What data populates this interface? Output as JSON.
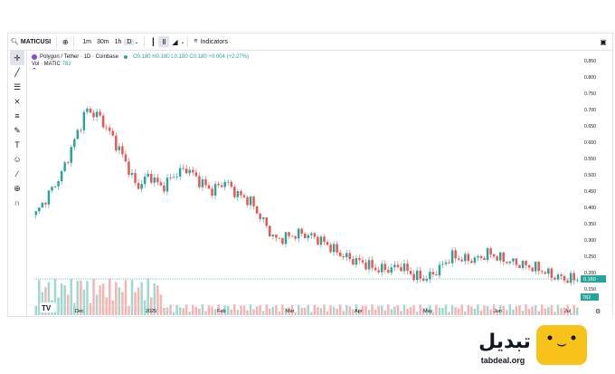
{
  "toolbar": {
    "symbol": "MATICUSI",
    "timeframes": [
      "1m",
      "30m",
      "1h",
      "D"
    ],
    "active_timeframe": "D",
    "indicators_label": "Indicators"
  },
  "legend": {
    "pair": "Polygon / Tether · 1D · Coinbase",
    "ohlc": "O0.180 H0.180 L0.180 C0.180 +0.004 (+2.27%)",
    "vol_label": "Vol · MATIC",
    "vol_value": "782"
  },
  "price_axis": {
    "ticks": [
      "0.850",
      "0.800",
      "0.750",
      "0.700",
      "0.650",
      "0.600",
      "0.550",
      "0.500",
      "0.450",
      "0.400",
      "0.350",
      "0.300",
      "0.250",
      "0.200",
      "0.150"
    ],
    "current_price": "0.180",
    "current_volume": "782"
  },
  "time_axis": {
    "labels": [
      "Dec",
      "2025",
      "Feb",
      "Mar",
      "Apr",
      "May",
      "Jun",
      "Jul"
    ]
  },
  "brand": {
    "name_fa": "تبدیل",
    "domain": "tabdeal.org",
    "accent": "#f7c31a"
  },
  "colors": {
    "up": "#26a69a",
    "down": "#ef5350",
    "line": "#b7e3d9"
  },
  "chart_data": {
    "type": "candlestick",
    "title": "Polygon / Tether · 1D · Coinbase",
    "ylim": [
      0.13,
      0.87
    ],
    "x_labels": [
      "Dec",
      "2025",
      "Feb",
      "Mar",
      "Apr",
      "May",
      "Jun",
      "Jul"
    ],
    "close_path": [
      [
        "Nov",
        0.38
      ],
      [
        "Nov",
        0.44
      ],
      [
        "Nov",
        0.5
      ],
      [
        "Nov",
        0.6
      ],
      [
        "Dec",
        0.7
      ],
      [
        "Dec",
        0.68
      ],
      [
        "Dec",
        0.62
      ],
      [
        "Dec",
        0.55
      ],
      [
        "Dec",
        0.46
      ],
      [
        "Dec",
        0.5
      ],
      [
        "Dec",
        0.46
      ],
      [
        "2025",
        0.5
      ],
      [
        "2025",
        0.52
      ],
      [
        "Jan",
        0.48
      ],
      [
        "Jan",
        0.45
      ],
      [
        "Jan",
        0.48
      ],
      [
        "Jan",
        0.44
      ],
      [
        "Jan",
        0.42
      ],
      [
        "Jan",
        0.36
      ],
      [
        "Feb",
        0.3
      ],
      [
        "Feb",
        0.31
      ],
      [
        "Feb",
        0.32
      ],
      [
        "Feb",
        0.31
      ],
      [
        "Feb",
        0.29
      ],
      [
        "Feb",
        0.26
      ],
      [
        "Mar",
        0.24
      ],
      [
        "Mar",
        0.23
      ],
      [
        "Mar",
        0.21
      ],
      [
        "Mar",
        0.21
      ],
      [
        "Apr",
        0.22
      ],
      [
        "Apr",
        0.19
      ],
      [
        "Apr",
        0.18
      ],
      [
        "Apr",
        0.21
      ],
      [
        "May",
        0.25
      ],
      [
        "May",
        0.24
      ],
      [
        "May",
        0.24
      ],
      [
        "May",
        0.26
      ],
      [
        "Jun",
        0.24
      ],
      [
        "Jun",
        0.23
      ],
      [
        "Jun",
        0.22
      ],
      [
        "Jun",
        0.21
      ],
      [
        "Jul",
        0.19
      ],
      [
        "Jul",
        0.18
      ],
      [
        "Jul",
        0.18
      ]
    ],
    "last_price": 0.18,
    "last_volume": 782
  }
}
